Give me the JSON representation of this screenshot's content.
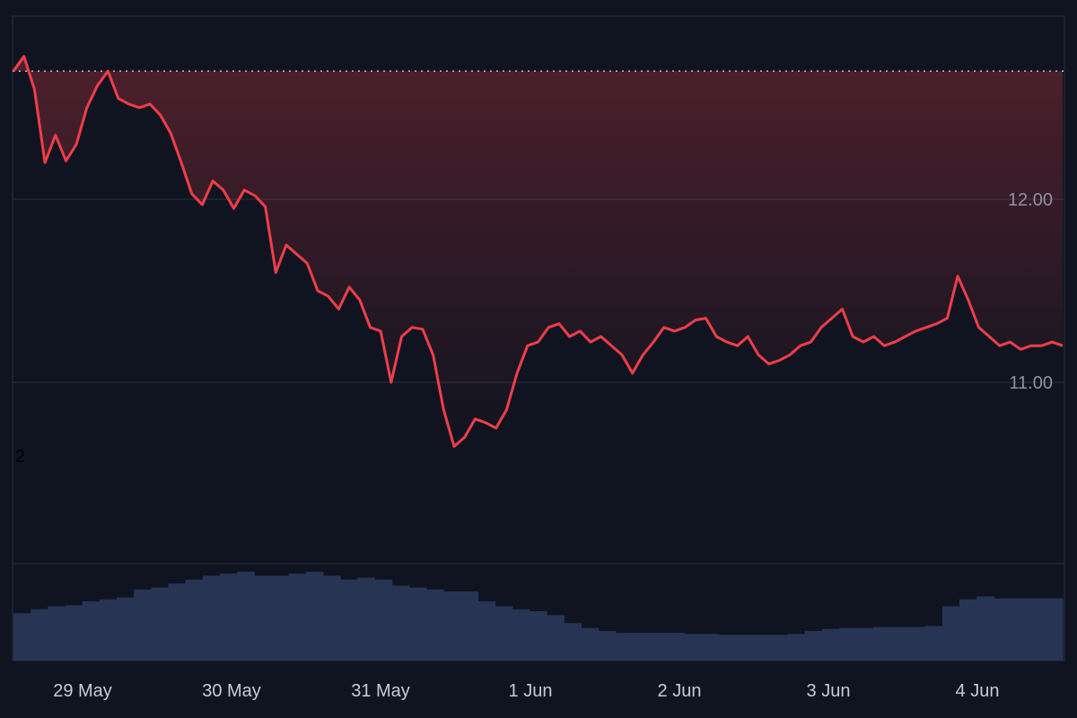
{
  "chart_data": {
    "type": "line",
    "y_axis": {
      "ticks": [
        12.0,
        11.0
      ],
      "tick_labels": [
        "12.00",
        "11.00"
      ],
      "range": [
        10.0,
        12.98
      ]
    },
    "x_axis": {
      "tick_labels": [
        "29 May",
        "30 May",
        "31 May",
        "1 Jun",
        "2 Jun",
        "3 Jun",
        "4 Jun"
      ]
    },
    "reference_line": {
      "value": 12.7,
      "style": "dotted"
    },
    "side_label": "2",
    "series": [
      {
        "values": [
          12.7,
          12.78,
          12.6,
          12.2,
          12.35,
          12.21,
          12.3,
          12.5,
          12.62,
          12.7,
          12.55,
          12.52,
          12.5,
          12.52,
          12.46,
          12.36,
          12.2,
          12.03,
          11.97,
          12.1,
          12.05,
          11.95,
          12.05,
          12.02,
          11.96,
          11.6,
          11.75,
          11.7,
          11.65,
          11.5,
          11.47,
          11.4,
          11.52,
          11.45,
          11.3,
          11.28,
          11.0,
          11.25,
          11.3,
          11.29,
          11.15,
          10.85,
          10.65,
          10.7,
          10.8,
          10.78,
          10.75,
          10.85,
          11.05,
          11.2,
          11.22,
          11.3,
          11.32,
          11.25,
          11.28,
          11.22,
          11.25,
          11.2,
          11.15,
          11.05,
          11.15,
          11.22,
          11.3,
          11.28,
          11.3,
          11.34,
          11.35,
          11.25,
          11.22,
          11.2,
          11.25,
          11.15,
          11.1,
          11.12,
          11.15,
          11.2,
          11.22,
          11.3,
          11.35,
          11.4,
          11.25,
          11.22,
          11.25,
          11.2,
          11.22,
          11.25,
          11.28,
          11.3,
          11.32,
          11.35,
          11.58,
          11.45,
          11.3,
          11.25,
          11.2,
          11.22,
          11.18,
          11.2,
          11.2,
          11.22,
          11.2
        ],
        "color": "#ef3e4a"
      }
    ],
    "volume": {
      "values": [
        0.48,
        0.52,
        0.55,
        0.56,
        0.6,
        0.62,
        0.64,
        0.72,
        0.74,
        0.78,
        0.82,
        0.86,
        0.88,
        0.9,
        0.86,
        0.86,
        0.88,
        0.9,
        0.86,
        0.82,
        0.84,
        0.82,
        0.76,
        0.74,
        0.72,
        0.7,
        0.7,
        0.6,
        0.55,
        0.52,
        0.5,
        0.46,
        0.38,
        0.33,
        0.3,
        0.28,
        0.28,
        0.28,
        0.28,
        0.27,
        0.27,
        0.26,
        0.26,
        0.26,
        0.26,
        0.27,
        0.3,
        0.32,
        0.33,
        0.33,
        0.34,
        0.34,
        0.34,
        0.35,
        0.55,
        0.62,
        0.65,
        0.63,
        0.63,
        0.63,
        0.63
      ],
      "color": "#283454"
    },
    "colors": {
      "background": "#0f1420",
      "grid": "#2a3140",
      "axis_text": "#8d93a3",
      "label_text": "#c8ccd6",
      "up": "#2ec46b",
      "down": "#ef3e4a"
    }
  }
}
